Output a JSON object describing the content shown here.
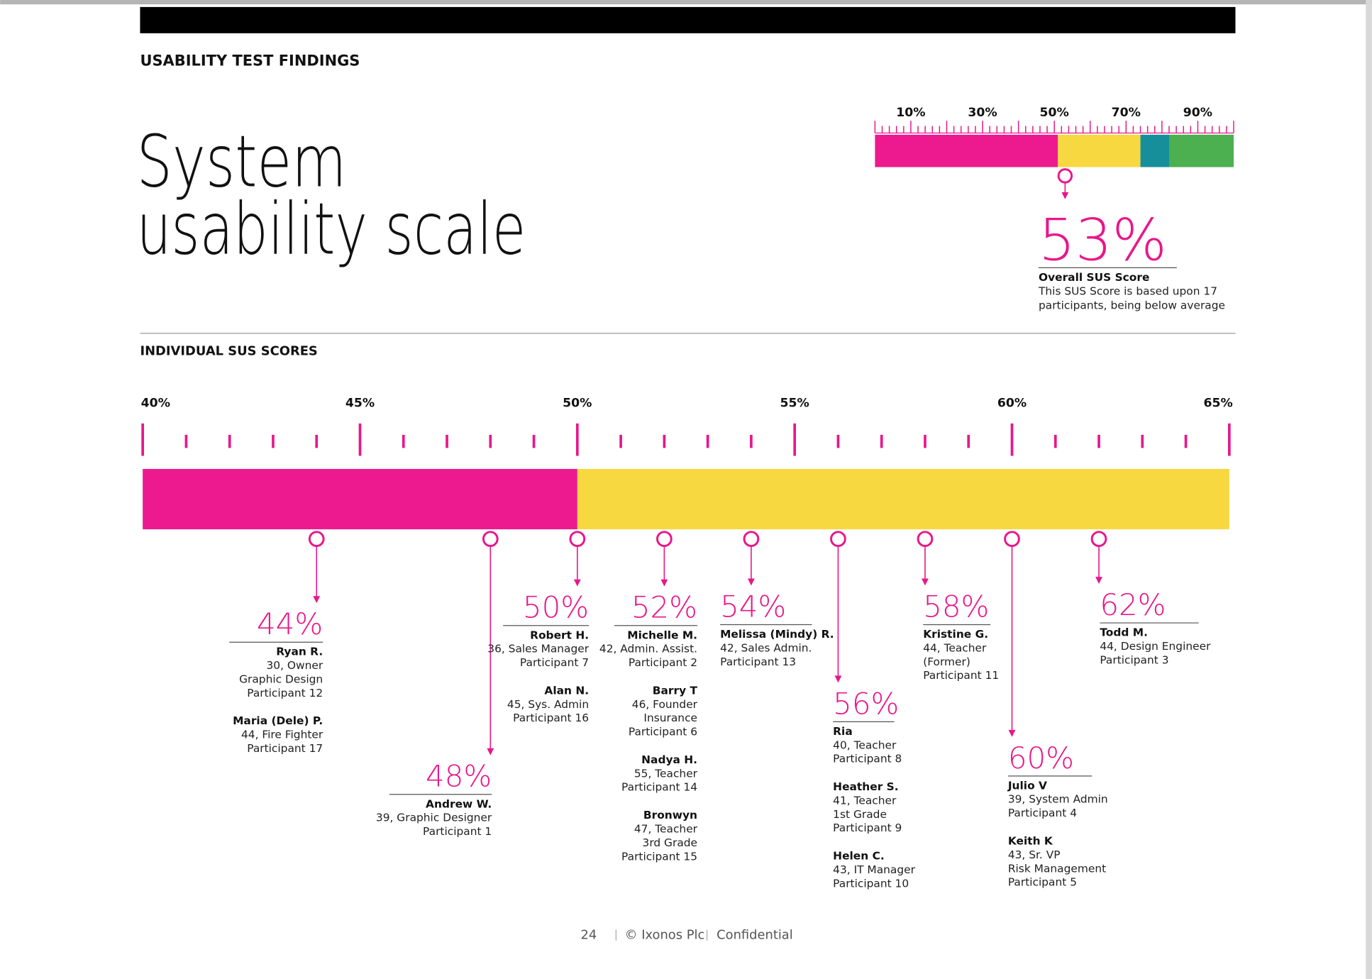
{
  "header": {
    "section": "USABILITY TEST FINDINGS",
    "title": [
      "System",
      "usability scale"
    ]
  },
  "chart_data": [
    {
      "type": "scale",
      "xlim": [
        0,
        100
      ],
      "xticks": [
        {
          "value": 10,
          "label": "10%"
        },
        {
          "value": 30,
          "label": "30%"
        },
        {
          "value": 50,
          "label": "50%"
        },
        {
          "value": 70,
          "label": "70%"
        },
        {
          "value": 90,
          "label": "90%"
        }
      ],
      "major_ticks": [
        0,
        10,
        20,
        30,
        40,
        50,
        60,
        70,
        80,
        90,
        100
      ],
      "minor_ticks": [
        2,
        4,
        6,
        8,
        12,
        14,
        16,
        18,
        22,
        24,
        26,
        28,
        32,
        34,
        36,
        38,
        42,
        44,
        46,
        48,
        52,
        54,
        56,
        58,
        62,
        64,
        66,
        68,
        72,
        74,
        76,
        78,
        82,
        84,
        86,
        88,
        92,
        94,
        96,
        98
      ],
      "tick_color": "#e8178a",
      "segments": [
        {
          "color": "#ec1a8e",
          "value": 51
        },
        {
          "color": "#f8d841",
          "value": 23
        },
        {
          "color": "#178f9b",
          "value": 8
        },
        {
          "color": "#4caf50",
          "value": 18
        }
      ],
      "marker_color": "#e8178a",
      "scores": [
        {
          "value": 53,
          "label": "53%",
          "title": "Overall SUS Score",
          "details": [
            "This SUS Score is based upon 17",
            "participants, being below average"
          ]
        }
      ]
    },
    {
      "type": "scale",
      "title": "INDIVIDUAL SUS SCORES",
      "xlim": [
        40,
        65
      ],
      "xticks": [
        {
          "value": 40,
          "label": "40%"
        },
        {
          "value": 45,
          "label": "45%"
        },
        {
          "value": 50,
          "label": "50%"
        },
        {
          "value": 55,
          "label": "55%"
        },
        {
          "value": 60,
          "label": "60%"
        },
        {
          "value": 65,
          "label": "65%"
        }
      ],
      "minor_ticks": [
        41,
        42,
        43,
        44,
        46,
        47,
        48,
        49,
        51,
        52,
        53,
        54,
        56,
        57,
        58,
        59,
        61,
        62,
        63,
        64
      ],
      "tick_color": "#e8178a",
      "segments": [
        {
          "color": "#ec1a8e",
          "value": 10
        },
        {
          "color": "#f8d841",
          "value": 15
        }
      ],
      "marker_color": "#e8178a",
      "scores": [
        {
          "value": 44,
          "label": "44%",
          "participants": [
            {
              "name": "Ryan R.",
              "details": [
                "30, Owner",
                "Graphic Design",
                "Participant 12"
              ]
            },
            {
              "name": "Maria (Dele) P.",
              "details": [
                "44, Fire Fighter",
                "Participant 17"
              ]
            }
          ]
        },
        {
          "value": 48,
          "label": "48%",
          "participants": [
            {
              "name": "Andrew W.",
              "details": [
                "39, Graphic Designer",
                "Participant 1"
              ]
            }
          ]
        },
        {
          "value": 50,
          "label": "50%",
          "participants": [
            {
              "name": "Robert H.",
              "details": [
                "36, Sales Manager",
                "Participant 7"
              ]
            },
            {
              "name": "Alan N.",
              "details": [
                "45, Sys. Admin",
                "Participant 16"
              ]
            }
          ]
        },
        {
          "value": 52,
          "label": "52%",
          "participants": [
            {
              "name": "Michelle M.",
              "details": [
                "42, Admin. Assist.",
                "Participant 2"
              ]
            },
            {
              "name": "Barry T",
              "details": [
                "46, Founder",
                "Insurance",
                "Participant 6"
              ]
            },
            {
              "name": "Nadya H.",
              "details": [
                "55, Teacher",
                "Participant 14"
              ]
            },
            {
              "name": "Bronwyn",
              "details": [
                "47, Teacher",
                "3rd Grade",
                "Participant 15"
              ]
            }
          ]
        },
        {
          "value": 54,
          "label": "54%",
          "participants": [
            {
              "name": "Melissa (Mindy) R.",
              "details": [
                "42, Sales Admin.",
                "Participant 13"
              ]
            }
          ]
        },
        {
          "value": 56,
          "label": "56%",
          "participants": [
            {
              "name": "Ria",
              "details": [
                "40, Teacher",
                "Participant 8"
              ]
            },
            {
              "name": "Heather S.",
              "details": [
                "41, Teacher",
                "1st Grade",
                "Participant 9"
              ]
            },
            {
              "name": "Helen C.",
              "details": [
                "43, IT Manager",
                "Participant 10"
              ]
            }
          ]
        },
        {
          "value": 58,
          "label": "58%",
          "participants": [
            {
              "name": "Kristine G.",
              "details": [
                "44, Teacher",
                "(Former)",
                "Participant 11"
              ]
            }
          ]
        },
        {
          "value": 60,
          "label": "60%",
          "participants": [
            {
              "name": "Julio V",
              "details": [
                "39, System Admin",
                "Participant 4"
              ]
            },
            {
              "name": "Keith K",
              "details": [
                "43, Sr. VP",
                "Risk Management",
                "Participant 5"
              ]
            }
          ]
        },
        {
          "value": 62,
          "label": "62%",
          "participants": [
            {
              "name": "Todd M.",
              "details": [
                "44, Design Engineer",
                "Participant 3"
              ]
            }
          ]
        }
      ]
    }
  ],
  "footer": {
    "page": "24",
    "copyright": "© Ixonos Plc",
    "label": "Confidential"
  }
}
